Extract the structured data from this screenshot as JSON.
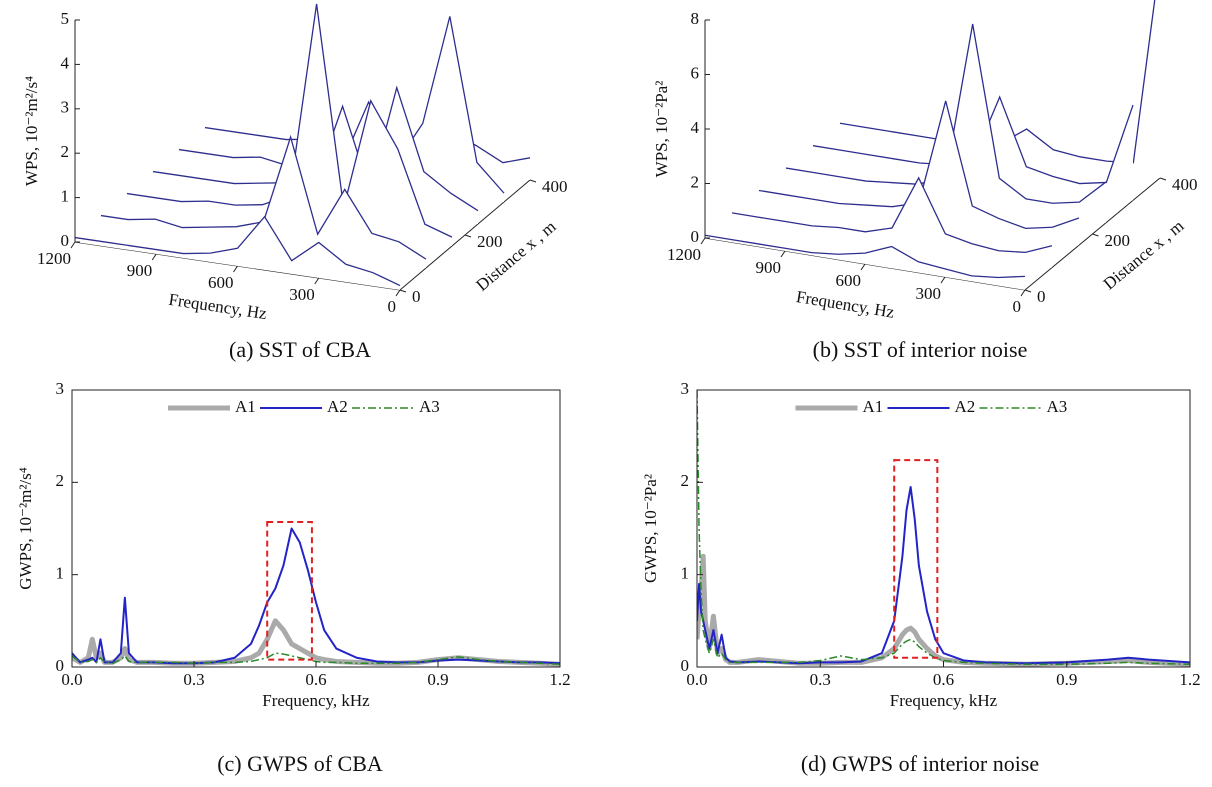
{
  "chart_data": [
    {
      "type": "waterfall",
      "caption": "(a) SST of CBA",
      "zlabel": "WPS, 10⁻²m²/s⁴",
      "xlabel": "Frequency, Hz",
      "ylabel": "Distance x , m",
      "x": [
        0,
        100,
        200,
        300,
        400,
        500,
        600,
        700,
        800,
        900,
        1000,
        1100,
        1200
      ],
      "xlim": [
        0,
        1200
      ],
      "xticks": [
        0,
        300,
        600,
        900,
        1200
      ],
      "ylim": [
        0,
        400
      ],
      "yticks": [
        0,
        200,
        400
      ],
      "zlim": [
        0,
        5
      ],
      "zticks": [
        0,
        1,
        2,
        3,
        4,
        5
      ],
      "color": "#2e2e8f",
      "series": [
        {
          "distance": 0,
          "values": [
            0.1,
            0.3,
            0.4,
            0.8,
            0.3,
            1.2,
            0.4,
            0.2,
            0.1,
            0.1,
            0.1,
            0.1,
            0.1
          ]
        },
        {
          "distance": 80,
          "values": [
            0.2,
            0.5,
            0.6,
            1.5,
            0.4,
            2.5,
            0.5,
            0.3,
            0.2,
            0.1,
            0.2,
            0.1,
            0.1
          ]
        },
        {
          "distance": 160,
          "values": [
            0.2,
            0.4,
            2.0,
            3.0,
            0.5,
            5.0,
            0.6,
            0.3,
            0.2,
            0.2,
            0.1,
            0.1,
            0.1
          ]
        },
        {
          "distance": 240,
          "values": [
            0.3,
            0.6,
            1.0,
            2.8,
            0.4,
            2.2,
            0.4,
            0.3,
            0.2,
            0.1,
            0.1,
            0.1,
            0.1
          ]
        },
        {
          "distance": 320,
          "values": [
            0.2,
            0.8,
            4.0,
            1.5,
            0.5,
            1.8,
            0.3,
            0.2,
            0.1,
            0.2,
            0.1,
            0.1,
            0.1
          ]
        },
        {
          "distance": 400,
          "values": [
            0.5,
            0.3,
            0.6,
            0.8,
            0.3,
            0.9,
            0.3,
            0.2,
            0.2,
            0.1,
            0.1,
            0.1,
            0.1
          ]
        }
      ]
    },
    {
      "type": "waterfall",
      "caption": "(b) SST of interior noise",
      "zlabel": "WPS, 10⁻²Pa²",
      "xlabel": "Frequency, Hz",
      "ylabel": "Distance x , m",
      "x": [
        0,
        100,
        200,
        300,
        400,
        500,
        600,
        700,
        800,
        900,
        1000,
        1100,
        1200
      ],
      "xlim": [
        0,
        1200
      ],
      "xticks": [
        0,
        300,
        600,
        900,
        1200
      ],
      "ylim": [
        0,
        400
      ],
      "yticks": [
        0,
        200,
        400
      ],
      "zlim": [
        0,
        8
      ],
      "zticks": [
        0,
        2,
        4,
        6,
        8
      ],
      "color": "#2e2e8f",
      "series": [
        {
          "distance": 0,
          "values": [
            0.5,
            0.3,
            0.2,
            0.3,
            0.4,
            0.8,
            0.4,
            0.2,
            0.1,
            0.1,
            0.1,
            0.1,
            0.1
          ]
        },
        {
          "distance": 80,
          "values": [
            0.8,
            0.4,
            0.3,
            0.4,
            0.6,
            2.5,
            0.5,
            0.2,
            0.2,
            0.1,
            0.1,
            0.1,
            0.1
          ]
        },
        {
          "distance": 160,
          "values": [
            1.0,
            0.5,
            0.3,
            0.5,
            0.8,
            4.5,
            0.6,
            0.3,
            0.2,
            0.1,
            0.1,
            0.1,
            0.1
          ]
        },
        {
          "distance": 240,
          "values": [
            1.5,
            0.6,
            0.4,
            0.4,
            1.0,
            6.5,
            0.8,
            0.3,
            0.2,
            0.1,
            0.1,
            0.1,
            0.1
          ]
        },
        {
          "distance": 320,
          "values": [
            3.5,
            0.5,
            0.3,
            0.4,
            0.6,
            3.0,
            0.5,
            0.2,
            0.1,
            0.1,
            0.1,
            0.1,
            0.1
          ]
        },
        {
          "distance": 400,
          "values": [
            8.0,
            0.4,
            0.3,
            0.3,
            0.4,
            1.0,
            0.3,
            0.2,
            0.1,
            0.1,
            0.1,
            0.1,
            0.1
          ]
        }
      ]
    },
    {
      "type": "line",
      "caption": "(c) GWPS of CBA",
      "ylabel": "GWPS, 10⁻²m²/s⁴",
      "xlabel": "Frequency, kHz",
      "xlim": [
        0,
        1.2
      ],
      "xticks": [
        {
          "value": 0,
          "label": "0.0"
        },
        0.3,
        0.6,
        0.9,
        1.2
      ],
      "ylim": [
        0,
        3
      ],
      "yticks": [
        0,
        1,
        2,
        3
      ],
      "legend": "upper center",
      "highlight": {
        "x": [
          0.48,
          0.59
        ],
        "y": [
          0.08,
          1.57
        ],
        "color": "#e02020"
      },
      "x": [
        0,
        0.02,
        0.04,
        0.05,
        0.06,
        0.07,
        0.08,
        0.1,
        0.12,
        0.13,
        0.14,
        0.16,
        0.2,
        0.25,
        0.3,
        0.35,
        0.4,
        0.44,
        0.46,
        0.48,
        0.5,
        0.52,
        0.54,
        0.56,
        0.58,
        0.6,
        0.62,
        0.65,
        0.7,
        0.75,
        0.8,
        0.85,
        0.9,
        0.95,
        1.0,
        1.05,
        1.1,
        1.15,
        1.2
      ],
      "series": [
        {
          "name": "A1",
          "color": "#aaaaaa",
          "line_width": 5,
          "line_style": "solid",
          "values": [
            0.1,
            0.05,
            0.1,
            0.3,
            0.1,
            0.15,
            0.05,
            0.05,
            0.1,
            0.2,
            0.08,
            0.05,
            0.05,
            0.04,
            0.04,
            0.05,
            0.06,
            0.1,
            0.15,
            0.3,
            0.5,
            0.4,
            0.25,
            0.2,
            0.15,
            0.1,
            0.08,
            0.06,
            0.05,
            0.04,
            0.04,
            0.05,
            0.08,
            0.1,
            0.08,
            0.06,
            0.05,
            0.04,
            0.03
          ]
        },
        {
          "name": "A2",
          "color": "#2323c8",
          "line_width": 2,
          "line_style": "solid",
          "values": [
            0.15,
            0.05,
            0.08,
            0.1,
            0.05,
            0.3,
            0.05,
            0.05,
            0.15,
            0.75,
            0.15,
            0.05,
            0.05,
            0.04,
            0.04,
            0.05,
            0.1,
            0.25,
            0.45,
            0.7,
            0.85,
            1.1,
            1.5,
            1.35,
            1.05,
            0.7,
            0.4,
            0.2,
            0.1,
            0.06,
            0.05,
            0.05,
            0.07,
            0.08,
            0.07,
            0.06,
            0.05,
            0.05,
            0.04
          ]
        },
        {
          "name": "A3",
          "color": "#2a8a2a",
          "line_width": 1.5,
          "line_style": "dashdot",
          "values": [
            0.12,
            0.05,
            0.06,
            0.08,
            0.05,
            0.1,
            0.05,
            0.04,
            0.08,
            0.12,
            0.06,
            0.05,
            0.05,
            0.05,
            0.04,
            0.05,
            0.05,
            0.06,
            0.08,
            0.1,
            0.15,
            0.14,
            0.12,
            0.1,
            0.08,
            0.06,
            0.05,
            0.05,
            0.04,
            0.04,
            0.04,
            0.05,
            0.08,
            0.11,
            0.08,
            0.06,
            0.05,
            0.04,
            0.03
          ]
        }
      ]
    },
    {
      "type": "line",
      "caption": "(d) GWPS of interior noise",
      "ylabel": "GWPS, 10⁻²Pa²",
      "xlabel": "Frequency, kHz",
      "xlim": [
        0,
        1.2
      ],
      "xticks": [
        {
          "value": 0,
          "label": "0.0"
        },
        0.3,
        0.6,
        0.9,
        1.2
      ],
      "ylim": [
        0,
        3
      ],
      "yticks": [
        0,
        1,
        2,
        3
      ],
      "legend": "upper center",
      "highlight": {
        "x": [
          0.48,
          0.585
        ],
        "y": [
          0.1,
          2.24
        ],
        "color": "#e02020"
      },
      "x": [
        0,
        0.005,
        0.01,
        0.015,
        0.02,
        0.03,
        0.04,
        0.05,
        0.06,
        0.07,
        0.08,
        0.1,
        0.15,
        0.2,
        0.25,
        0.3,
        0.35,
        0.4,
        0.45,
        0.48,
        0.5,
        0.51,
        0.52,
        0.53,
        0.54,
        0.56,
        0.58,
        0.6,
        0.65,
        0.7,
        0.8,
        0.9,
        1.0,
        1.05,
        1.1,
        1.2
      ],
      "series": [
        {
          "name": "A1",
          "color": "#aaaaaa",
          "line_width": 5,
          "line_style": "solid",
          "values": [
            0.3,
            0.6,
            0.8,
            1.2,
            0.5,
            0.2,
            0.55,
            0.15,
            0.2,
            0.08,
            0.05,
            0.05,
            0.08,
            0.06,
            0.04,
            0.04,
            0.05,
            0.05,
            0.1,
            0.2,
            0.35,
            0.4,
            0.42,
            0.38,
            0.3,
            0.2,
            0.12,
            0.08,
            0.05,
            0.04,
            0.03,
            0.04,
            0.06,
            0.07,
            0.05,
            0.03
          ]
        },
        {
          "name": "A2",
          "color": "#2323c8",
          "line_width": 2,
          "line_style": "solid",
          "values": [
            0.5,
            0.9,
            0.6,
            0.5,
            0.4,
            0.2,
            0.4,
            0.15,
            0.35,
            0.1,
            0.06,
            0.05,
            0.06,
            0.05,
            0.04,
            0.05,
            0.05,
            0.06,
            0.15,
            0.5,
            1.2,
            1.7,
            1.95,
            1.6,
            1.1,
            0.6,
            0.3,
            0.15,
            0.07,
            0.05,
            0.04,
            0.05,
            0.08,
            0.1,
            0.08,
            0.05
          ]
        },
        {
          "name": "A3",
          "color": "#2a8a2a",
          "line_width": 1.5,
          "line_style": "dashdot",
          "values": [
            3,
            1.5,
            0.8,
            0.4,
            0.3,
            0.15,
            0.3,
            0.1,
            0.15,
            0.08,
            0.05,
            0.05,
            0.05,
            0.05,
            0.05,
            0.07,
            0.12,
            0.08,
            0.1,
            0.15,
            0.25,
            0.28,
            0.3,
            0.27,
            0.22,
            0.15,
            0.1,
            0.07,
            0.05,
            0.04,
            0.03,
            0.03,
            0.04,
            0.05,
            0.04,
            0.03
          ]
        }
      ]
    }
  ]
}
